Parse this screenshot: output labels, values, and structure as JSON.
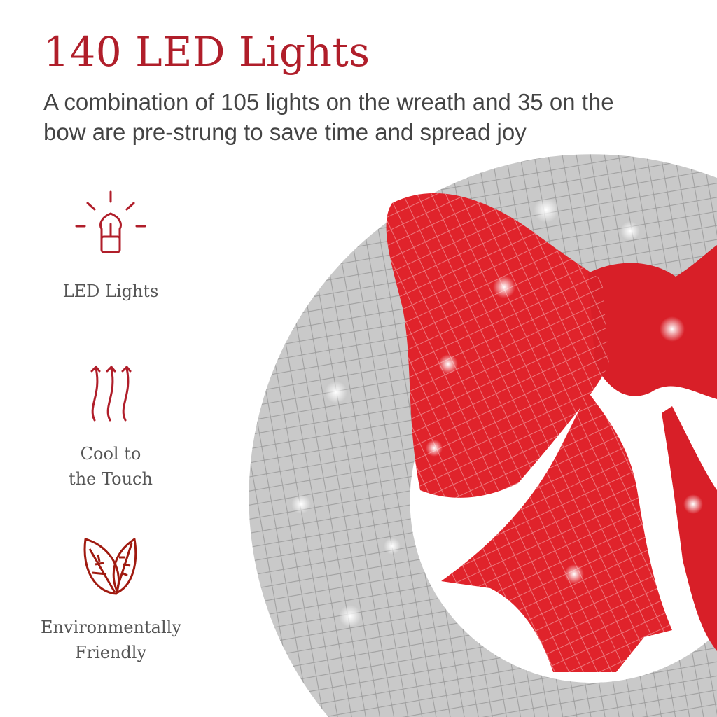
{
  "header": {
    "title": "140 LED Lights",
    "subtitle": "A combination of 105 lights on the wreath and 35 on the bow are pre-strung to save time and spread joy"
  },
  "features": [
    {
      "icon": "led-bulb-icon",
      "label": "LED Lights"
    },
    {
      "icon": "heat-waves-icon",
      "label": "Cool to the Touch"
    },
    {
      "icon": "leaves-icon",
      "label": "Environmentally Friendly"
    }
  ],
  "colors": {
    "accent": "#b01e2a",
    "text": "#444444",
    "bow": "#e0232b",
    "wreath": "#c8c8c8"
  }
}
